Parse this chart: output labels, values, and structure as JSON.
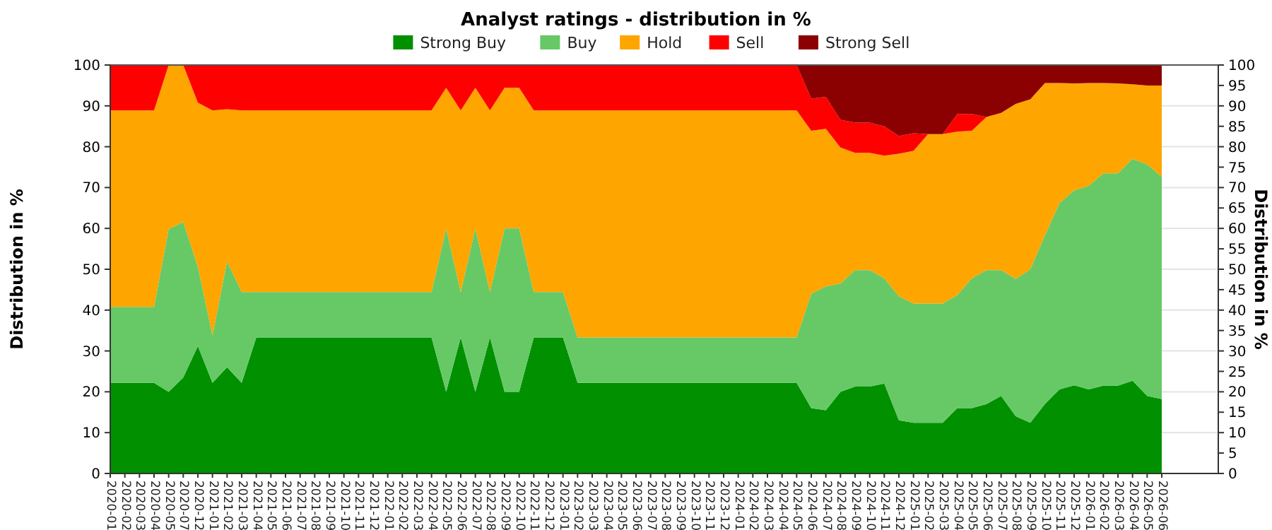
{
  "chart_data": {
    "type": "area",
    "stacked": true,
    "title": "Analyst ratings - distribution in %",
    "ylabel": "Distribution in %",
    "y2label": "Distribution in %",
    "categories": [
      "2020-01",
      "2020-02",
      "2020-03",
      "2020-04",
      "2020-05",
      "2020-07",
      "2020-12",
      "2021-01",
      "2021-02",
      "2021-03",
      "2021-04",
      "2021-05",
      "2021-06",
      "2021-07",
      "2021-08",
      "2021-09",
      "2021-10",
      "2021-11",
      "2021-12",
      "2022-01",
      "2022-02",
      "2022-03",
      "2022-04",
      "2022-05",
      "2022-06",
      "2022-07",
      "2022-08",
      "2022-09",
      "2022-10",
      "2022-11",
      "2022-12",
      "2023-01",
      "2023-02",
      "2023-03",
      "2023-04",
      "2023-05",
      "2023-06",
      "2023-07",
      "2023-08",
      "2023-09",
      "2023-10",
      "2023-11",
      "2023-12",
      "2024-01",
      "2024-02",
      "2024-03",
      "2024-04",
      "2024-05",
      "2024-06",
      "2024-07",
      "2024-08",
      "2024-09",
      "2024-10",
      "2024-11",
      "2024-12",
      "2025-01",
      "2025-02",
      "2025-03",
      "2025-04",
      "2025-05",
      "2025-06",
      "2025-07",
      "2025-08",
      "2025-09",
      "2025-10",
      "2025-11",
      "2025-12",
      "2026-01",
      "2026-02",
      "2026-03",
      "2026-04",
      "2026-05",
      "2026-06"
    ],
    "series": [
      {
        "name": "Strong Buy",
        "color": "#009000",
        "values": [
          22.2,
          22.2,
          22.2,
          22.2,
          20,
          23.5,
          31.2,
          22.2,
          26,
          22.2,
          33.3,
          33.3,
          33.3,
          33.3,
          33.3,
          33.3,
          33.3,
          33.3,
          33.3,
          33.3,
          33.3,
          33.3,
          33.3,
          20,
          33.3,
          20,
          33.3,
          20,
          20,
          33.3,
          33.3,
          33.3,
          22.2,
          22.2,
          22.2,
          22.2,
          22.2,
          22.2,
          22.2,
          22.2,
          22.2,
          22.2,
          22.2,
          22.2,
          22.2,
          22.2,
          22.2,
          22.2,
          16,
          15.5,
          20,
          21.3,
          21.3,
          22,
          13,
          12.4,
          12.4,
          12.4,
          16,
          16,
          17,
          19,
          14,
          12.4,
          17,
          20.6,
          21.6,
          20.6,
          21.5,
          21.5,
          22.7,
          19,
          18.2
        ]
      },
      {
        "name": "Buy",
        "color": "#66c966",
        "values": [
          18.6,
          18.6,
          18.6,
          18.6,
          39.8,
          38.1,
          19.4,
          11.6,
          25.9,
          22.2,
          11.1,
          11.1,
          11.1,
          11.1,
          11.1,
          11.1,
          11.1,
          11.1,
          11.1,
          11.1,
          11.1,
          11.1,
          11.1,
          40,
          11.1,
          40,
          11.1,
          40,
          40,
          11.1,
          11.1,
          11.1,
          11.1,
          11.1,
          11.1,
          11.1,
          11.1,
          11.1,
          11.1,
          11.1,
          11.1,
          11.1,
          11.1,
          11.1,
          11.1,
          11.1,
          11.1,
          11.1,
          28,
          30.3,
          26.5,
          28.5,
          28.5,
          25.8,
          30.4,
          29.2,
          29.2,
          29.2,
          27.7,
          31.8,
          32.8,
          30.8,
          33.6,
          37.6,
          41.3,
          45.6,
          47.7,
          49.8,
          52,
          52,
          54.3,
          56.7,
          54.4
        ]
      },
      {
        "name": "Hold",
        "color": "#ffa500",
        "values": [
          48.1,
          48.1,
          48.1,
          48.1,
          40.2,
          38.4,
          40.2,
          55.1,
          37.3,
          44.5,
          44.5,
          44.5,
          44.5,
          44.5,
          44.5,
          44.5,
          44.5,
          44.5,
          44.5,
          44.5,
          44.5,
          44.5,
          44.5,
          34.4,
          44.5,
          34.4,
          44.5,
          34.4,
          34.4,
          44.5,
          44.5,
          44.5,
          55.6,
          55.6,
          55.6,
          55.6,
          55.6,
          55.6,
          55.6,
          55.6,
          55.6,
          55.6,
          55.6,
          55.6,
          55.6,
          55.6,
          55.6,
          55.6,
          39.9,
          38.6,
          33.3,
          28.7,
          28.7,
          30,
          34.9,
          37.4,
          41.5,
          41.5,
          40,
          36.1,
          37.5,
          38.5,
          42.9,
          41.6,
          37.3,
          29.4,
          26.2,
          25.2,
          22.1,
          22,
          18.3,
          19.3,
          22.4
        ]
      },
      {
        "name": "Sell",
        "color": "#ff0000",
        "values": [
          11.1,
          11.1,
          11.1,
          11.1,
          0,
          0,
          9.2,
          11.1,
          10.8,
          11.1,
          11.1,
          11.1,
          11.1,
          11.1,
          11.1,
          11.1,
          11.1,
          11.1,
          11.1,
          11.1,
          11.1,
          11.1,
          11.1,
          5.6,
          11.1,
          5.6,
          11.1,
          5.6,
          5.6,
          11.1,
          11.1,
          11.1,
          11.1,
          11.1,
          11.1,
          11.1,
          11.1,
          11.1,
          11.1,
          11.1,
          11.1,
          11.1,
          11.1,
          11.1,
          11.1,
          11.1,
          11.1,
          11.1,
          7.9,
          7.8,
          6.8,
          7.4,
          7.4,
          7.2,
          4.3,
          4.3,
          0,
          0,
          4.3,
          4.1,
          0,
          0,
          0,
          0,
          0,
          0,
          0,
          0,
          0,
          0,
          0,
          0,
          0
        ]
      },
      {
        "name": "Strong Sell",
        "color": "#8b0000",
        "values": [
          0,
          0,
          0,
          0,
          0,
          0,
          0,
          0,
          0,
          0,
          0,
          0,
          0,
          0,
          0,
          0,
          0,
          0,
          0,
          0,
          0,
          0,
          0,
          0,
          0,
          0,
          0,
          0,
          0,
          0,
          0,
          0,
          0,
          0,
          0,
          0,
          0,
          0,
          0,
          0,
          0,
          0,
          0,
          0,
          0,
          0,
          0,
          0,
          8.2,
          7.8,
          13.4,
          14.1,
          14.1,
          15,
          17.4,
          16.7,
          16.9,
          16.9,
          12,
          12,
          12.7,
          11.7,
          9.5,
          8.4,
          4.4,
          4.4,
          4.5,
          4.4,
          4.4,
          4.5,
          4.7,
          5,
          5
        ]
      }
    ],
    "ylim": [
      0,
      100
    ],
    "yticks": [
      0,
      10,
      20,
      30,
      40,
      50,
      60,
      70,
      80,
      90,
      100
    ],
    "y2lim": [
      0,
      100
    ],
    "y2ticks": [
      0,
      5,
      10,
      15,
      20,
      25,
      30,
      35,
      40,
      45,
      50,
      55,
      60,
      65,
      70,
      75,
      80,
      85,
      90,
      95,
      100
    ],
    "grid": "y",
    "legend": "top"
  }
}
